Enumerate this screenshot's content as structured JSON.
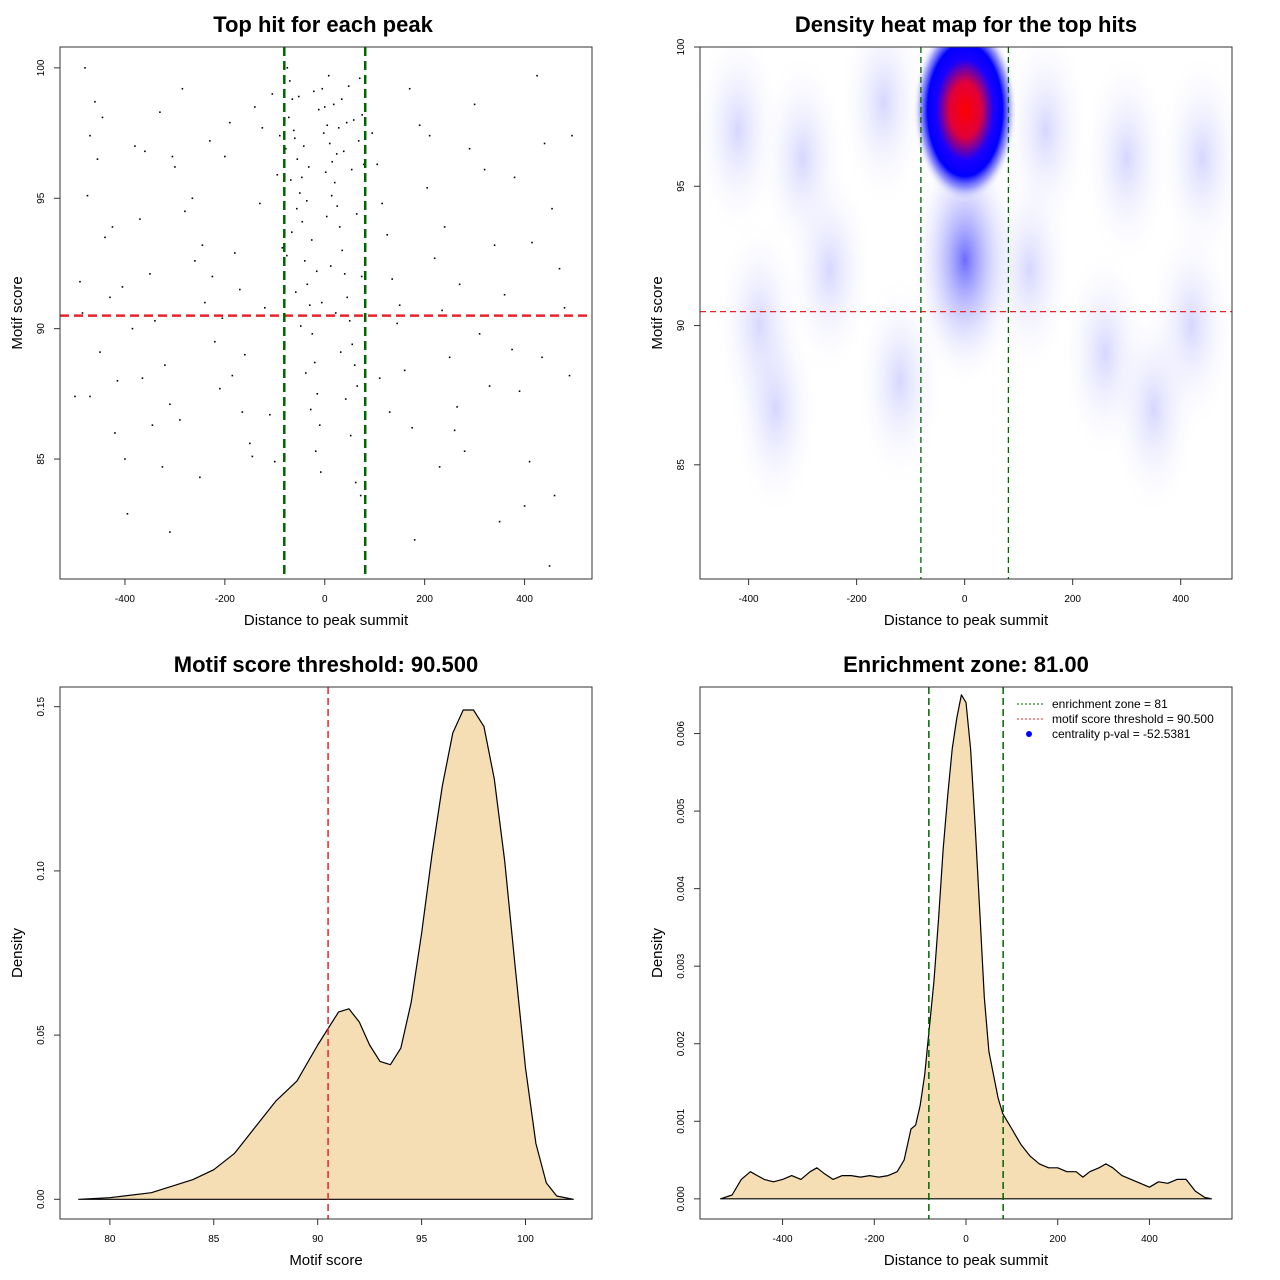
{
  "chart_data": [
    {
      "type": "scatter",
      "title": "Top hit for each peak",
      "xlabel": "Distance to peak summit",
      "ylabel": "Motif score",
      "xlim": [
        -530,
        535
      ],
      "ylim": [
        80.4,
        100.8
      ],
      "x_ticks": [
        -400,
        -200,
        0,
        200,
        400
      ],
      "y_ticks": [
        85,
        90,
        95,
        100
      ],
      "threshold_y": 90.5,
      "zone_x": [
        -81,
        81
      ],
      "colors": {
        "points": "#000000",
        "threshold": "#e8242b",
        "zone": "#006400"
      },
      "points": [
        [
          -480,
          100
        ],
        [
          -460,
          98.7
        ],
        [
          -470,
          97.4
        ],
        [
          -455,
          96.5
        ],
        [
          -440,
          93.5
        ],
        [
          -430,
          91.2
        ],
        [
          -415,
          88
        ],
        [
          -400,
          85
        ],
        [
          -380,
          97
        ],
        [
          -360,
          96.8
        ],
        [
          -350,
          92.1
        ],
        [
          -340,
          90.3
        ],
        [
          -320,
          88.6
        ],
        [
          -310,
          87.1
        ],
        [
          -300,
          96.2
        ],
        [
          -280,
          94.5
        ],
        [
          -260,
          92.6
        ],
        [
          -240,
          91
        ],
        [
          -220,
          89.5
        ],
        [
          -210,
          87.7
        ],
        [
          -200,
          96.6
        ],
        [
          -190,
          97.9
        ],
        [
          -180,
          92.9
        ],
        [
          -170,
          91.5
        ],
        [
          -160,
          89
        ],
        [
          -150,
          85.6
        ],
        [
          -140,
          98.5
        ],
        [
          -120,
          90.8
        ],
        [
          -110,
          86.7
        ],
        [
          -100,
          84.9
        ],
        [
          -470,
          87.4
        ],
        [
          -450,
          89.1
        ],
        [
          -420,
          86
        ],
        [
          -395,
          82.9
        ],
        [
          -370,
          94.2
        ],
        [
          -330,
          98.3
        ],
        [
          -290,
          86.5
        ],
        [
          -250,
          84.3
        ],
        [
          -230,
          97.2
        ],
        [
          -130,
          94.8
        ],
        [
          -90,
          97.4
        ],
        [
          -85,
          93.1
        ],
        [
          -75,
          100
        ],
        [
          -70,
          99.5
        ],
        [
          -65,
          98.8
        ],
        [
          -60,
          97.3
        ],
        [
          -55,
          96.5
        ],
        [
          -50,
          95.2
        ],
        [
          -45,
          94.1
        ],
        [
          -40,
          92.6
        ],
        [
          -35,
          91.7
        ],
        [
          -30,
          90.9
        ],
        [
          -25,
          89.8
        ],
        [
          -20,
          88.7
        ],
        [
          -15,
          87.5
        ],
        [
          -10,
          86.3
        ],
        [
          -5,
          99.2
        ],
        [
          0,
          98.5
        ],
        [
          5,
          97.8
        ],
        [
          10,
          97.1
        ],
        [
          15,
          96.4
        ],
        [
          20,
          95.6
        ],
        [
          25,
          94.7
        ],
        [
          30,
          93.9
        ],
        [
          35,
          93
        ],
        [
          40,
          92.1
        ],
        [
          45,
          91.2
        ],
        [
          50,
          90.3
        ],
        [
          55,
          89.4
        ],
        [
          60,
          88.6
        ],
        [
          65,
          87.8
        ],
        [
          70,
          99.6
        ],
        [
          75,
          98.2
        ],
        [
          -78,
          96.9
        ],
        [
          -68,
          95.7
        ],
        [
          -58,
          91.4
        ],
        [
          -48,
          90.1
        ],
        [
          -38,
          88.3
        ],
        [
          -28,
          86.9
        ],
        [
          -18,
          85.3
        ],
        [
          -8,
          84.5
        ],
        [
          2,
          96
        ],
        [
          12,
          92.4
        ],
        [
          22,
          90.6
        ],
        [
          32,
          89.1
        ],
        [
          42,
          87.3
        ],
        [
          52,
          85.9
        ],
        [
          62,
          84.1
        ],
        [
          72,
          83.6
        ],
        [
          -72,
          98.1
        ],
        [
          -62,
          97.6
        ],
        [
          -52,
          98.9
        ],
        [
          -42,
          97
        ],
        [
          -32,
          96.2
        ],
        [
          -22,
          99.1
        ],
        [
          -12,
          98.4
        ],
        [
          -2,
          97.5
        ],
        [
          8,
          99.7
        ],
        [
          18,
          98.6
        ],
        [
          28,
          97.7
        ],
        [
          38,
          96.8
        ],
        [
          48,
          99.3
        ],
        [
          58,
          98
        ],
        [
          68,
          97.2
        ],
        [
          78,
          96.3
        ],
        [
          -76,
          92.8
        ],
        [
          -66,
          93.7
        ],
        [
          -56,
          94.6
        ],
        [
          -46,
          95.8
        ],
        [
          -36,
          94.9
        ],
        [
          -26,
          93.4
        ],
        [
          -16,
          92.2
        ],
        [
          -6,
          91
        ],
        [
          4,
          94.3
        ],
        [
          14,
          95.1
        ],
        [
          24,
          96.7
        ],
        [
          34,
          98.8
        ],
        [
          44,
          97.9
        ],
        [
          54,
          96.1
        ],
        [
          64,
          94.4
        ],
        [
          74,
          92
        ],
        [
          95,
          97.5
        ],
        [
          105,
          96.3
        ],
        [
          115,
          94.8
        ],
        [
          125,
          93.6
        ],
        [
          135,
          91.9
        ],
        [
          145,
          90.2
        ],
        [
          160,
          88.4
        ],
        [
          175,
          86.2
        ],
        [
          190,
          97.8
        ],
        [
          205,
          95.4
        ],
        [
          220,
          92.7
        ],
        [
          235,
          90.7
        ],
        [
          250,
          88.9
        ],
        [
          265,
          87
        ],
        [
          280,
          85.3
        ],
        [
          300,
          98.6
        ],
        [
          320,
          96.1
        ],
        [
          340,
          93.2
        ],
        [
          360,
          91.3
        ],
        [
          375,
          89.2
        ],
        [
          390,
          87.6
        ],
        [
          410,
          84.9
        ],
        [
          425,
          99.7
        ],
        [
          440,
          97.1
        ],
        [
          455,
          94.6
        ],
        [
          470,
          92.3
        ],
        [
          480,
          90.8
        ],
        [
          490,
          88.2
        ],
        [
          495,
          97.4
        ],
        [
          460,
          83.6
        ],
        [
          450,
          80.9
        ],
        [
          350,
          82.6
        ],
        [
          180,
          81.9
        ],
        [
          400,
          83.2
        ],
        [
          130,
          86.8
        ],
        [
          230,
          84.7
        ],
        [
          310,
          89.8
        ],
        [
          260,
          86.1
        ],
        [
          330,
          87.8
        ],
        [
          110,
          88.1
        ],
        [
          150,
          90.9
        ],
        [
          170,
          99.2
        ],
        [
          210,
          97.4
        ],
        [
          240,
          93.9
        ],
        [
          270,
          91.7
        ],
        [
          290,
          96.9
        ],
        [
          380,
          95.8
        ],
        [
          415,
          93.3
        ],
        [
          435,
          88.9
        ],
        [
          -310,
          82.2
        ],
        [
          -500,
          87.4
        ],
        [
          -490,
          91.8
        ],
        [
          -485,
          90.6
        ],
        [
          -475,
          95.1
        ],
        [
          -445,
          98.1
        ],
        [
          -425,
          93.9
        ],
        [
          -405,
          91.6
        ],
        [
          -385,
          90
        ],
        [
          -365,
          88.1
        ],
        [
          -345,
          86.3
        ],
        [
          -325,
          84.7
        ],
        [
          -305,
          96.6
        ],
        [
          -285,
          99.2
        ],
        [
          -265,
          95
        ],
        [
          -245,
          93.2
        ],
        [
          -225,
          92
        ],
        [
          -205,
          90.4
        ],
        [
          -185,
          88.2
        ],
        [
          -165,
          86.8
        ],
        [
          -145,
          85.1
        ],
        [
          -125,
          97.7
        ],
        [
          -105,
          99
        ],
        [
          -95,
          95.9
        ]
      ]
    },
    {
      "type": "heatmap",
      "title": "Density heat map for the top hits",
      "xlabel": "Distance to peak summit",
      "ylabel": "Motif score",
      "xlim": [
        -490,
        495
      ],
      "ylim": [
        80.9,
        100
      ],
      "x_ticks": [
        -400,
        -200,
        0,
        200,
        400
      ],
      "y_ticks": [
        85,
        90,
        95,
        100
      ],
      "threshold_y": 90.5,
      "zone_x": [
        -81,
        81
      ],
      "peak": {
        "x": 5,
        "y": 97.8
      },
      "colors": {
        "low": "#ffffff",
        "mid": "#0000ff",
        "high": "#ff0000",
        "threshold": "#e8242b",
        "zone": "#006400"
      }
    },
    {
      "type": "area",
      "title": "Motif score threshold: 90.500",
      "xlabel": "Motif score",
      "ylabel": "Density",
      "xlim": [
        77.6,
        103.2
      ],
      "ylim": [
        -0.006,
        0.156
      ],
      "x_ticks": [
        80,
        85,
        90,
        95,
        100
      ],
      "y_ticks": [
        0.0,
        0.05,
        0.1,
        0.15
      ],
      "y_tick_labels": [
        "0.00",
        "0.05",
        "0.10",
        "0.15"
      ],
      "threshold_x": 90.5,
      "x": [
        78.5,
        80,
        82,
        84,
        85,
        86,
        87,
        88,
        89,
        90,
        91,
        91.5,
        92,
        92.5,
        93,
        93.5,
        94,
        94.5,
        95,
        95.5,
        96,
        96.5,
        97,
        97.5,
        98,
        98.5,
        99,
        99.5,
        100,
        100.5,
        101,
        101.5,
        102.3
      ],
      "y": [
        0.0,
        0.0005,
        0.002,
        0.006,
        0.009,
        0.014,
        0.022,
        0.03,
        0.036,
        0.047,
        0.057,
        0.058,
        0.054,
        0.047,
        0.042,
        0.041,
        0.046,
        0.06,
        0.081,
        0.105,
        0.126,
        0.142,
        0.149,
        0.149,
        0.144,
        0.128,
        0.103,
        0.071,
        0.04,
        0.017,
        0.005,
        0.001,
        0.0
      ],
      "colors": {
        "fill": "#f5deb3",
        "line": "#000000",
        "threshold": "#e8242b"
      }
    },
    {
      "type": "area",
      "title": "Enrichment zone: 81.00",
      "xlabel": "Distance to peak summit",
      "ylabel": "Density",
      "xlim": [
        -580,
        580
      ],
      "ylim": [
        -0.00026,
        0.0066
      ],
      "x_ticks": [
        -400,
        -200,
        0,
        200,
        400
      ],
      "y_ticks": [
        0.0,
        0.001,
        0.002,
        0.003,
        0.004,
        0.005,
        0.006
      ],
      "y_tick_labels": [
        "0.000",
        "0.001",
        "0.002",
        "0.003",
        "0.004",
        "0.005",
        "0.006"
      ],
      "zone_x": [
        -81,
        81
      ],
      "x": [
        -535,
        -510,
        -490,
        -470,
        -455,
        -440,
        -420,
        -400,
        -380,
        -360,
        -340,
        -325,
        -310,
        -290,
        -270,
        -250,
        -230,
        -210,
        -190,
        -170,
        -150,
        -135,
        -120,
        -110,
        -100,
        -90,
        -80,
        -70,
        -60,
        -50,
        -40,
        -30,
        -20,
        -10,
        0,
        10,
        20,
        30,
        40,
        50,
        60,
        70,
        80,
        90,
        100,
        110,
        120,
        140,
        160,
        180,
        200,
        220,
        240,
        255,
        270,
        290,
        305,
        320,
        340,
        360,
        380,
        400,
        420,
        440,
        460,
        480,
        500,
        520,
        535
      ],
      "y": [
        0.0,
        5e-05,
        0.00025,
        0.00035,
        0.0003,
        0.00025,
        0.00022,
        0.00025,
        0.0003,
        0.00025,
        0.00035,
        0.0004,
        0.00033,
        0.00025,
        0.0003,
        0.0003,
        0.00028,
        0.0003,
        0.00028,
        0.0003,
        0.00035,
        0.0005,
        0.0009,
        0.00095,
        0.0012,
        0.0016,
        0.0022,
        0.0028,
        0.0036,
        0.0045,
        0.0052,
        0.0058,
        0.0062,
        0.0065,
        0.0064,
        0.0058,
        0.0048,
        0.0037,
        0.0026,
        0.0019,
        0.0016,
        0.0013,
        0.0011,
        0.001,
        0.0009,
        0.0008,
        0.0007,
        0.00055,
        0.00045,
        0.0004,
        0.0004,
        0.00035,
        0.00035,
        0.00028,
        0.00035,
        0.0004,
        0.00045,
        0.0004,
        0.0003,
        0.00025,
        0.0002,
        0.00015,
        0.00022,
        0.0002,
        0.00025,
        0.00025,
        0.0001,
        2e-05,
        0.0
      ],
      "legend": [
        "enrichment zone = 81",
        "motif score threshold = 90.500",
        "centrality p-val = -52.5381"
      ],
      "legend_position": "top-right",
      "colors": {
        "fill": "#f5deb3",
        "line": "#000000",
        "zone": "#006400",
        "legend_zone": "#006400",
        "legend_threshold": "#e8242b",
        "legend_pval": "#0000ff"
      }
    }
  ]
}
